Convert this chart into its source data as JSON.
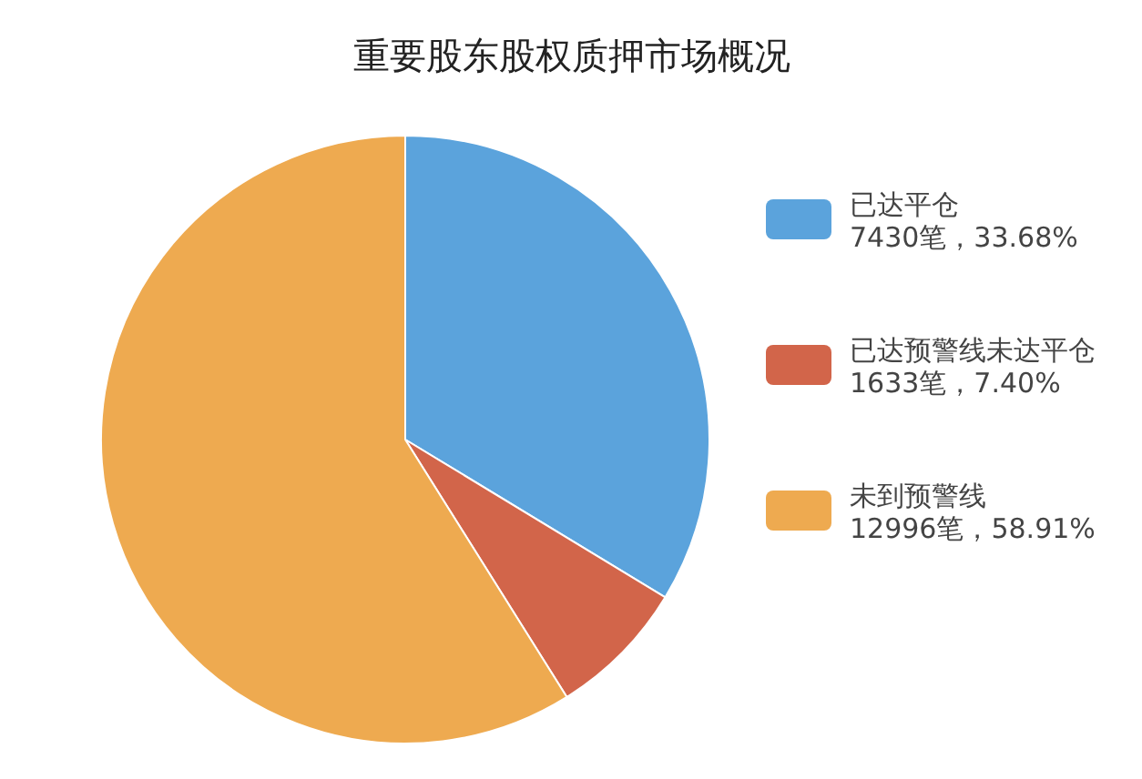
{
  "chart_data": {
    "type": "pie",
    "title": "重要股东股权质押市场概况",
    "categories": [
      "已达平仓",
      "已达预警线未达平仓",
      "未到预警线"
    ],
    "values": [
      7430,
      1633,
      12996
    ],
    "value_labels": [
      "7430笔，33.68%",
      "1633笔，7.40%",
      "12996笔，58.91%"
    ],
    "colors": [
      "#5ba3dc",
      "#d2654a",
      "#eeaa50"
    ],
    "legend": "right"
  }
}
